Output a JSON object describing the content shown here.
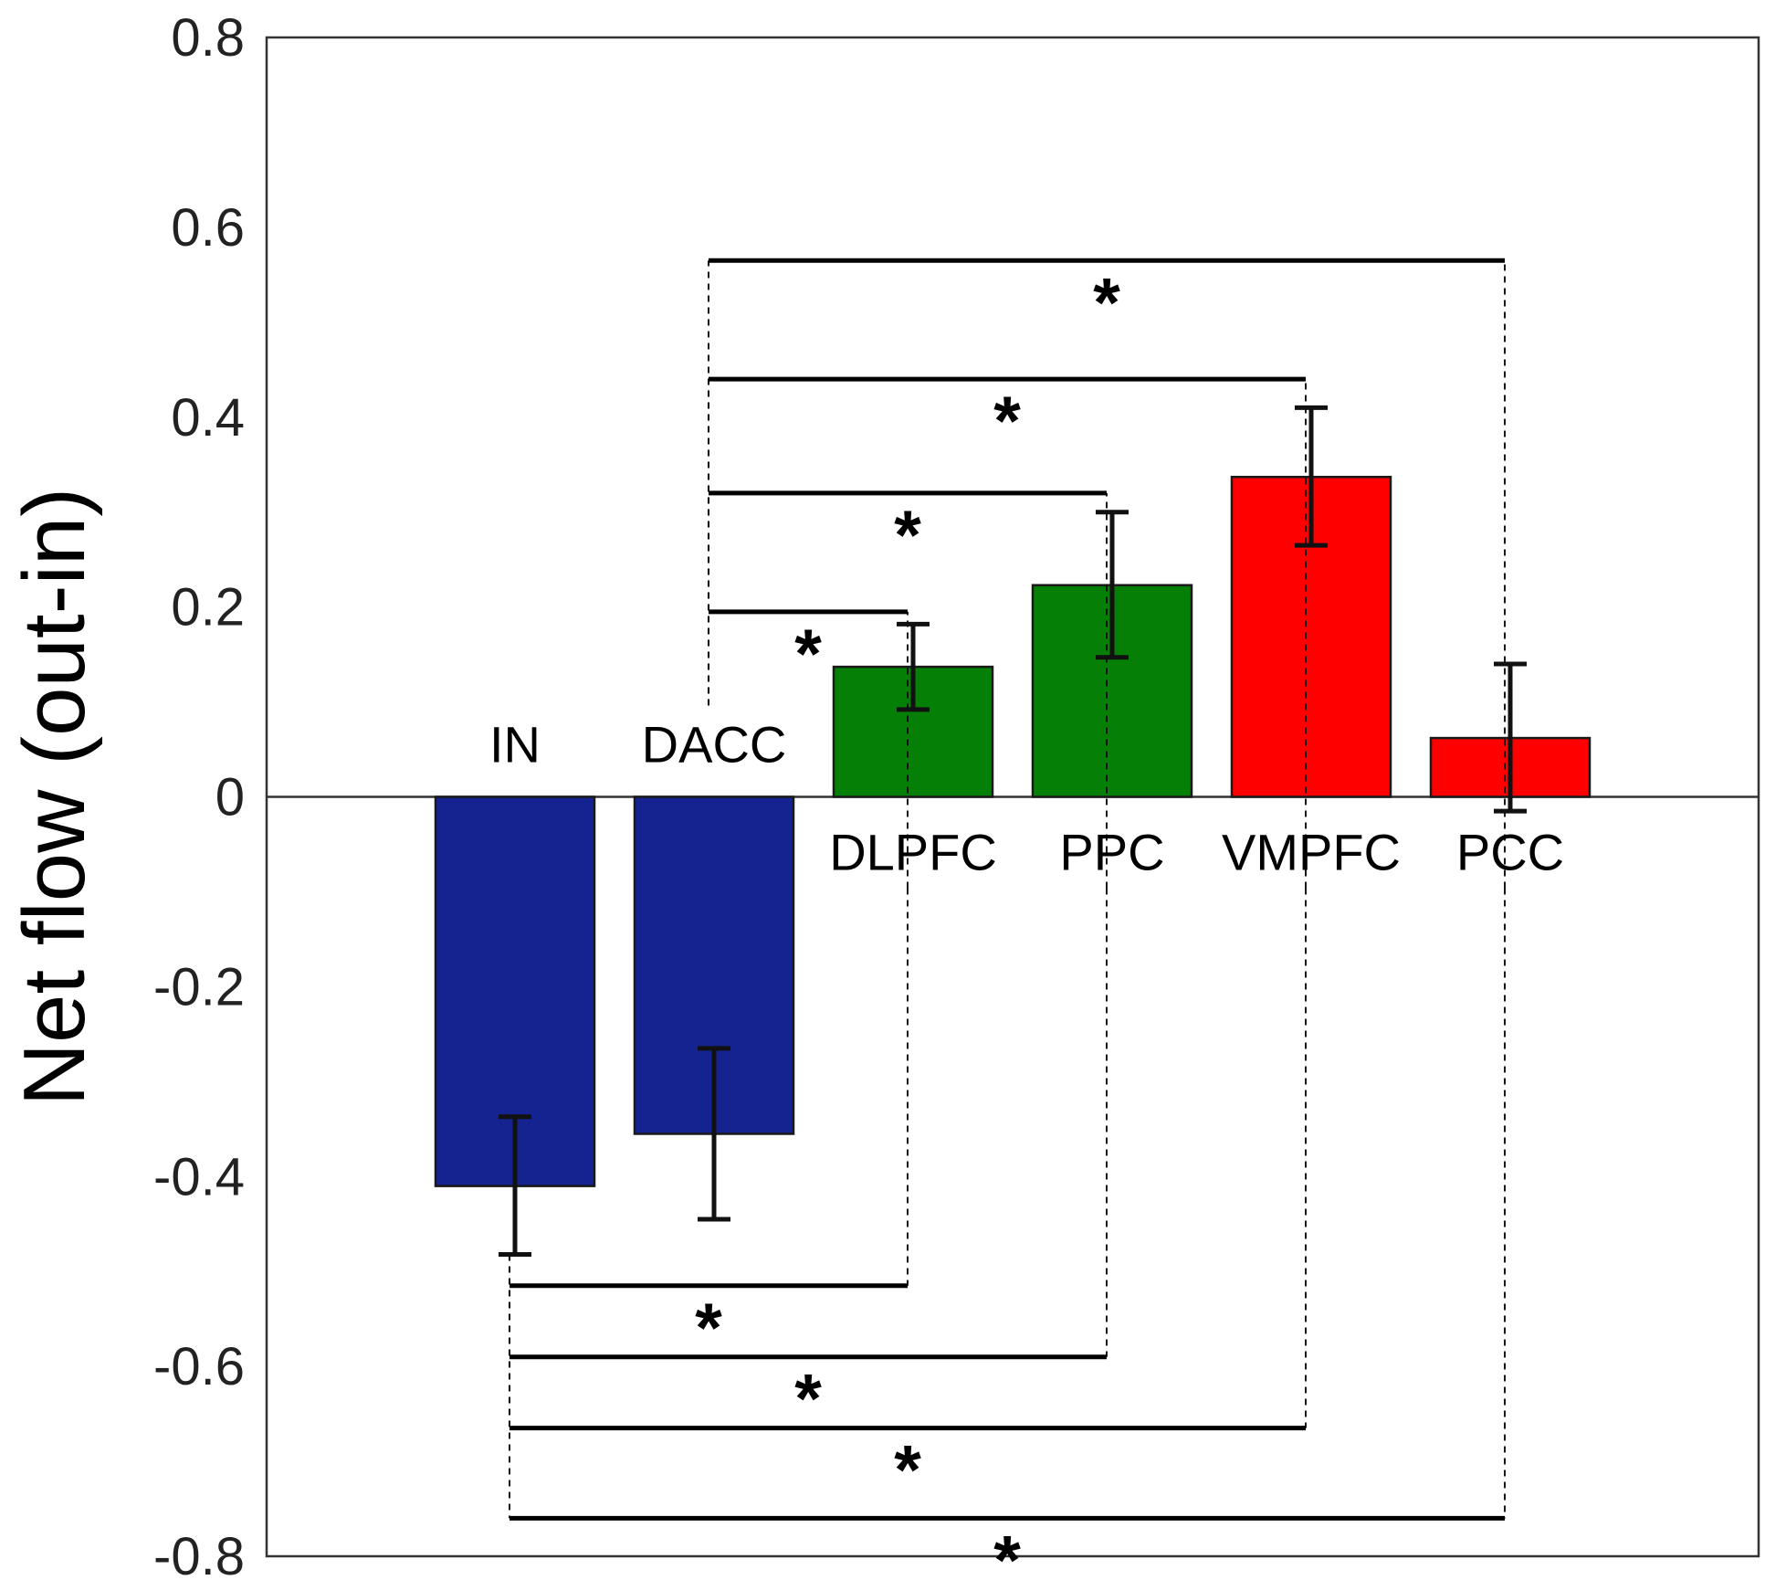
{
  "chart_data": {
    "type": "bar",
    "title": "",
    "xlabel": "",
    "ylabel": "Net flow (out-in)",
    "ylim": [
      -0.8,
      0.8
    ],
    "yticks": [
      "0.8",
      "0.6",
      "0.4",
      "0.2",
      "0",
      "-0.2",
      "-0.4",
      "-0.6",
      "-0.8"
    ],
    "ytick_values": [
      0.8,
      0.6,
      0.4,
      0.2,
      0,
      -0.2,
      -0.4,
      -0.6,
      -0.8
    ],
    "grid": false,
    "categories": [
      "IN",
      "DACC",
      "DLPFC",
      "PPC",
      "VMPFC",
      "PCC"
    ],
    "values": [
      -0.41,
      -0.355,
      0.137,
      0.223,
      0.337,
      0.062
    ],
    "error_low": [
      -0.482,
      -0.445,
      0.092,
      0.147,
      0.265,
      -0.015
    ],
    "error_high": [
      -0.337,
      -0.265,
      0.182,
      0.3,
      0.41,
      0.14
    ],
    "bar_colors": [
      "#14238f",
      "#14238f",
      "#067f06",
      "#067f06",
      "#fe0000",
      "#fe0000"
    ],
    "significance": [
      {
        "from": "DACC",
        "to": "PCC",
        "y": 0.565,
        "label": "*"
      },
      {
        "from": "DACC",
        "to": "VMPFC",
        "y": 0.44,
        "label": "*"
      },
      {
        "from": "DACC",
        "to": "PPC",
        "y": 0.32,
        "label": "*"
      },
      {
        "from": "DACC",
        "to": "DLPFC",
        "y": 0.195,
        "label": "*"
      },
      {
        "from": "IN",
        "to": "DLPFC",
        "y": -0.515,
        "label": "*"
      },
      {
        "from": "IN",
        "to": "PPC",
        "y": -0.59,
        "label": "*"
      },
      {
        "from": "IN",
        "to": "VMPFC",
        "y": -0.665,
        "label": "*"
      },
      {
        "from": "IN",
        "to": "PCC",
        "y": -0.76,
        "label": "*"
      }
    ]
  }
}
